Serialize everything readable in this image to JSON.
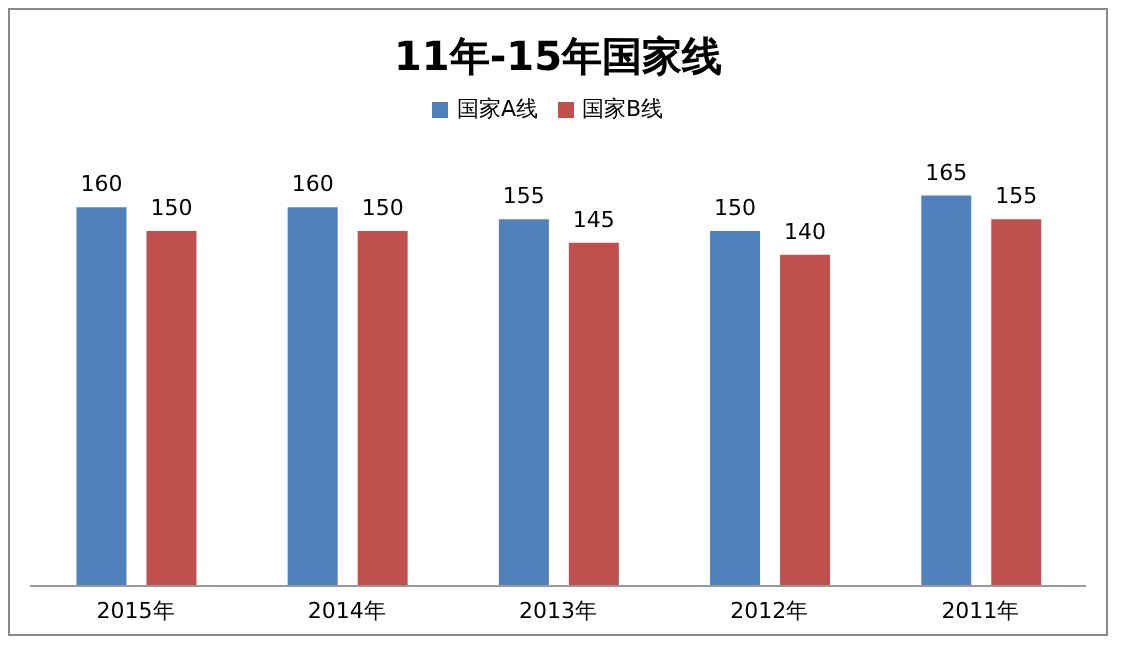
{
  "chart_data": {
    "type": "bar",
    "title": "11年-15年国家线",
    "categories": [
      "2015年",
      "2014年",
      "2013年",
      "2012年",
      "2011年"
    ],
    "series": [
      {
        "name": "国家A线",
        "color": "#4f81bd",
        "values": [
          160,
          160,
          155,
          150,
          165
        ]
      },
      {
        "name": "国家B线",
        "color": "#c0504d",
        "values": [
          150,
          150,
          145,
          140,
          155
        ]
      }
    ],
    "data_labels": true,
    "legend": "top",
    "grid": false
  }
}
